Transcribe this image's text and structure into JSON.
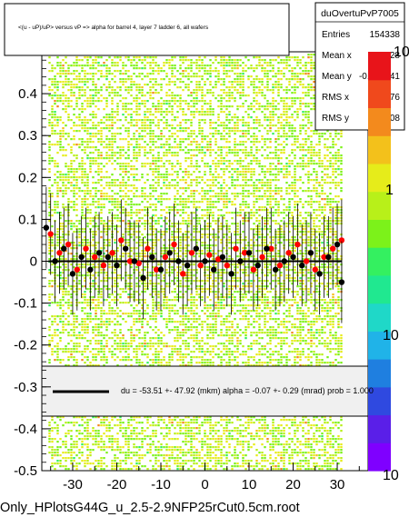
{
  "title": "<(u - uP)/uP> versus  vP => alpha for barrel 4, layer 7 ladder 6, all wafers",
  "filename": "Only_HPlotsG44G_u_2.5-2.9NFP25rCut0.5cm.root",
  "stats": {
    "name": "duOvertuPvP7005",
    "rows": [
      {
        "label": "Entries",
        "value": "154338"
      },
      {
        "label": "Mean x",
        "value": "0.4828"
      },
      {
        "label": "Mean y",
        "value": "-0.003141"
      },
      {
        "label": "RMS x",
        "value": "16.76"
      },
      {
        "label": "RMS y",
        "value": "0.2608"
      }
    ]
  },
  "fit": {
    "text": "du =  -53.51 +- 47.92 (mkm) alpha =   -0.07 +-  0.29 (mrad) prob = 1.000"
  },
  "palette": {
    "labels": [
      "10",
      "1",
      "10",
      "10"
    ],
    "colors": [
      "#7f00ff",
      "#5a1fe8",
      "#2f49e0",
      "#1f7fe0",
      "#20b3e8",
      "#1fd8c8",
      "#20e890",
      "#34f060",
      "#7cf21a",
      "#b8f019",
      "#e6ec1a",
      "#f3c11b",
      "#f38a1d",
      "#f0491c",
      "#e8141a"
    ]
  },
  "chart_data": {
    "type": "scatter",
    "xlim": [
      -37,
      37
    ],
    "ylim": [
      -0.5,
      0.5
    ],
    "x_ticks": [
      -30,
      -20,
      -10,
      0,
      10,
      20,
      30
    ],
    "y_ticks": [
      -0.5,
      -0.4,
      -0.3,
      -0.2,
      -0.1,
      0,
      0.1,
      0.2,
      0.3,
      0.4
    ],
    "x_tick_labels": [
      "-30",
      "-20",
      "-10",
      "0",
      "10",
      "20",
      "30"
    ],
    "y_tick_labels": [
      "-0.5",
      "-0.4",
      "-0.3",
      "-0.2",
      "-0.1",
      "0",
      "0.1",
      "0.2",
      "0.3",
      "0.4"
    ],
    "series": [
      {
        "marker_color": "#ff0000",
        "x": [
          -35,
          -33,
          -31,
          -29,
          -27,
          -25,
          -23,
          -21,
          -19,
          -17,
          -15,
          -13,
          -11,
          -9,
          -7,
          -5,
          -3,
          -1,
          1,
          3,
          5,
          7,
          9,
          11,
          13,
          15,
          17,
          19,
          21,
          23,
          25,
          27,
          29,
          31
        ],
        "y": [
          0.065,
          0.02,
          0.04,
          -0.02,
          0.03,
          0.01,
          -0.01,
          0.02,
          0.05,
          0.0,
          -0.005,
          0.03,
          -0.02,
          0.01,
          0.04,
          -0.03,
          0.02,
          -0.01,
          0.015,
          0.005,
          -0.01,
          0.03,
          0.02,
          -0.02,
          0.01,
          0.03,
          -0.01,
          0.02,
          0.04,
          0.0,
          -0.02,
          0.01,
          0.03,
          0.05
        ]
      },
      {
        "marker_color": "#000000",
        "x": [
          -36,
          -34,
          -32,
          -30,
          -28,
          -26,
          -24,
          -22,
          -20,
          -18,
          -16,
          -14,
          -12,
          -10,
          -8,
          -6,
          -4,
          -2,
          0,
          2,
          4,
          6,
          8,
          10,
          12,
          14,
          16,
          18,
          20,
          22,
          24,
          26,
          28,
          30,
          31
        ],
        "y": [
          0.08,
          0.0,
          0.03,
          -0.03,
          0.01,
          -0.02,
          0.02,
          0.01,
          -0.01,
          0.03,
          0.0,
          -0.04,
          0.01,
          -0.02,
          0.02,
          0.0,
          -0.01,
          0.03,
          0.0,
          -0.02,
          0.01,
          -0.03,
          0.0,
          0.02,
          -0.01,
          0.03,
          -0.02,
          0.0,
          0.01,
          -0.01,
          0.02,
          -0.03,
          0.01,
          0.04,
          -0.05
        ]
      }
    ],
    "fit_line": {
      "y": 0.0,
      "color": "#000000"
    }
  }
}
